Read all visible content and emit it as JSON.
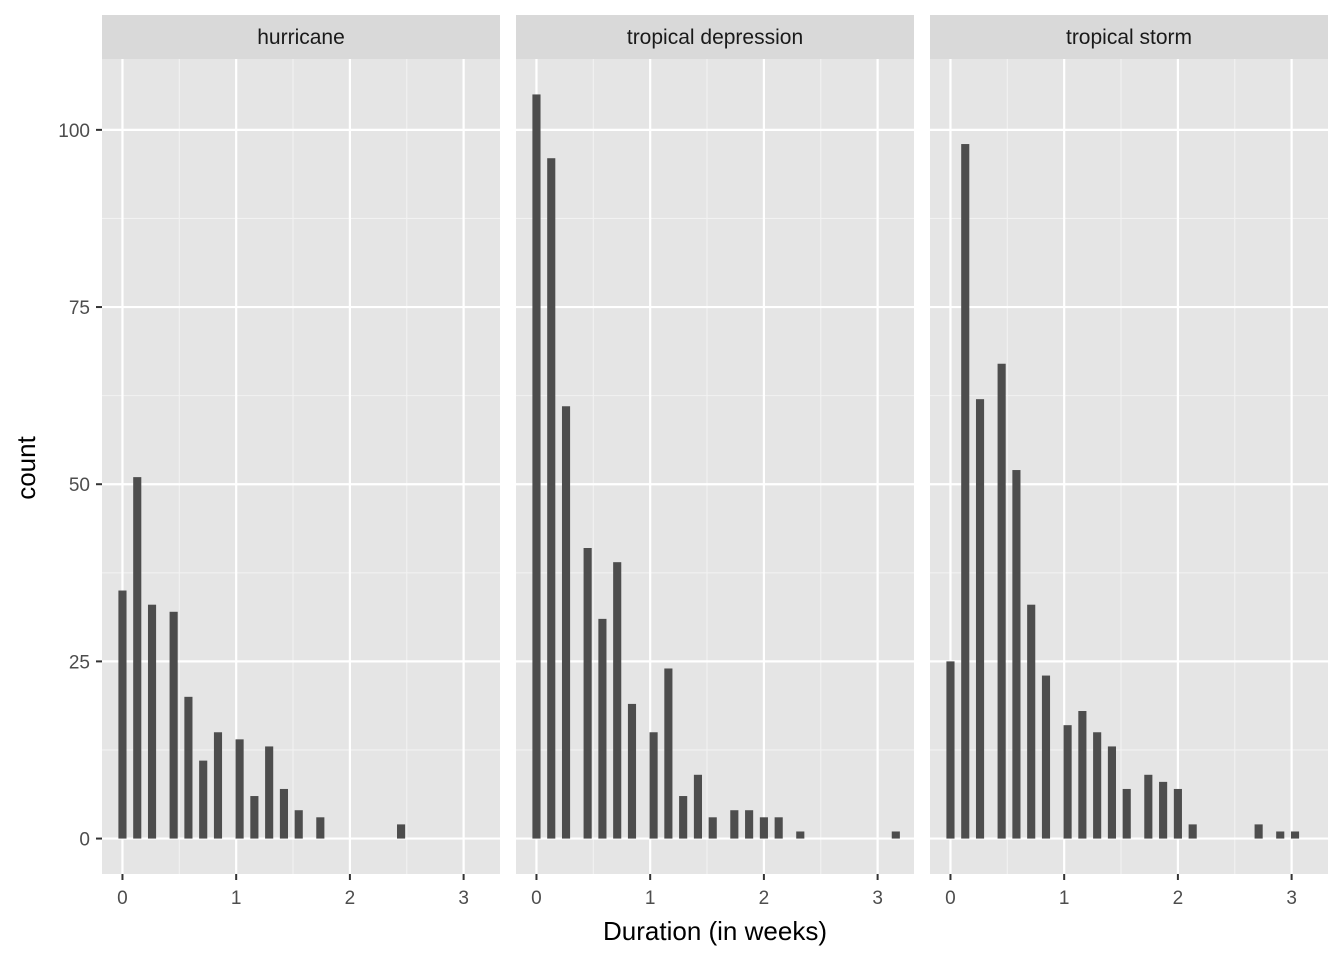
{
  "chart_data": {
    "type": "bar",
    "xlabel": "Duration (in weeks)",
    "ylabel": "count",
    "xlim": [
      -0.18,
      3.32
    ],
    "ylim": [
      -5,
      110
    ],
    "xticks": [
      0,
      1,
      2,
      3
    ],
    "yticks": [
      0,
      25,
      50,
      75,
      100
    ],
    "grid": true,
    "bin_width": 0.0714,
    "panels": [
      {
        "name": "hurricane",
        "bars": [
          {
            "x": 0.0,
            "count": 35
          },
          {
            "x": 0.13,
            "count": 51
          },
          {
            "x": 0.26,
            "count": 33
          },
          {
            "x": 0.45,
            "count": 32
          },
          {
            "x": 0.58,
            "count": 20
          },
          {
            "x": 0.71,
            "count": 11
          },
          {
            "x": 0.84,
            "count": 15
          },
          {
            "x": 1.03,
            "count": 14
          },
          {
            "x": 1.16,
            "count": 6
          },
          {
            "x": 1.29,
            "count": 13
          },
          {
            "x": 1.42,
            "count": 7
          },
          {
            "x": 1.55,
            "count": 4
          },
          {
            "x": 1.74,
            "count": 3
          },
          {
            "x": 2.45,
            "count": 2
          }
        ]
      },
      {
        "name": "tropical depression",
        "bars": [
          {
            "x": 0.0,
            "count": 105
          },
          {
            "x": 0.13,
            "count": 96
          },
          {
            "x": 0.26,
            "count": 61
          },
          {
            "x": 0.45,
            "count": 41
          },
          {
            "x": 0.58,
            "count": 31
          },
          {
            "x": 0.71,
            "count": 39
          },
          {
            "x": 0.84,
            "count": 19
          },
          {
            "x": 1.03,
            "count": 15
          },
          {
            "x": 1.16,
            "count": 24
          },
          {
            "x": 1.29,
            "count": 6
          },
          {
            "x": 1.42,
            "count": 9
          },
          {
            "x": 1.55,
            "count": 3
          },
          {
            "x": 1.74,
            "count": 4
          },
          {
            "x": 1.87,
            "count": 4
          },
          {
            "x": 2.0,
            "count": 3
          },
          {
            "x": 2.13,
            "count": 3
          },
          {
            "x": 2.32,
            "count": 1
          },
          {
            "x": 3.16,
            "count": 1
          }
        ]
      },
      {
        "name": "tropical storm",
        "bars": [
          {
            "x": 0.0,
            "count": 25
          },
          {
            "x": 0.13,
            "count": 98
          },
          {
            "x": 0.26,
            "count": 62
          },
          {
            "x": 0.45,
            "count": 67
          },
          {
            "x": 0.58,
            "count": 52
          },
          {
            "x": 0.71,
            "count": 33
          },
          {
            "x": 0.84,
            "count": 23
          },
          {
            "x": 1.03,
            "count": 16
          },
          {
            "x": 1.16,
            "count": 18
          },
          {
            "x": 1.29,
            "count": 15
          },
          {
            "x": 1.42,
            "count": 13
          },
          {
            "x": 1.55,
            "count": 7
          },
          {
            "x": 1.74,
            "count": 9
          },
          {
            "x": 1.87,
            "count": 8
          },
          {
            "x": 2.0,
            "count": 7
          },
          {
            "x": 2.13,
            "count": 2
          },
          {
            "x": 2.71,
            "count": 2
          },
          {
            "x": 2.9,
            "count": 1
          },
          {
            "x": 3.03,
            "count": 1
          }
        ]
      }
    ]
  }
}
